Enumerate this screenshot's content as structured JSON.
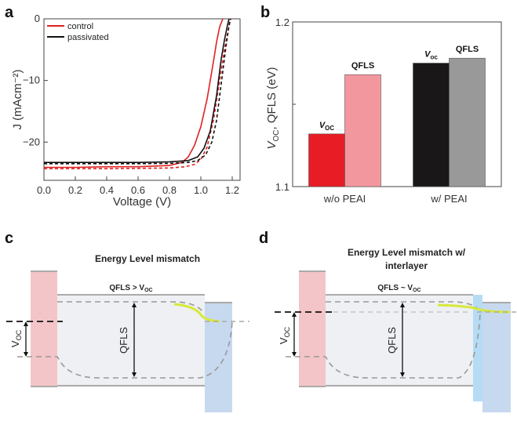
{
  "panels": {
    "a": "a",
    "b": "b",
    "c": "c",
    "d": "d"
  },
  "chart_data": [
    {
      "panel": "a",
      "type": "line",
      "xlabel": "Voltage (V)",
      "ylabel": "J (mAcm⁻²)",
      "xlim": [
        0,
        1.25
      ],
      "ylim": [
        -26.2,
        0
      ],
      "xticks": [
        "0.0",
        "0.2",
        "0.4",
        "0.6",
        "0.8",
        "1.0",
        "1.2"
      ],
      "yticks": [
        "-20",
        "-10",
        "0"
      ],
      "legend": {
        "position": "top-right",
        "entries": [
          "control",
          "passivated"
        ]
      },
      "series": [
        {
          "name": "control",
          "color": "#e02020",
          "dash": "solid",
          "x": [
            0,
            0.2,
            0.4,
            0.6,
            0.8,
            0.88,
            0.92,
            0.96,
            1.0,
            1.04,
            1.08,
            1.1,
            1.12,
            1.14
          ],
          "y": [
            -24.1,
            -24.1,
            -24.0,
            -24.0,
            -23.8,
            -23.3,
            -22.4,
            -20.5,
            -17.5,
            -13.0,
            -7.0,
            -3.8,
            -1.3,
            0
          ]
        },
        {
          "name": "control (reverse)",
          "color": "#e02020",
          "dash": "dashed",
          "x": [
            0,
            0.2,
            0.4,
            0.6,
            0.8,
            0.9,
            0.96,
            1.0,
            1.04,
            1.08,
            1.12,
            1.15,
            1.18,
            1.19
          ],
          "y": [
            -24.3,
            -24.3,
            -24.3,
            -24.25,
            -24.2,
            -24.0,
            -23.6,
            -22.8,
            -20.8,
            -16.5,
            -10.0,
            -5.0,
            -1.2,
            0
          ]
        },
        {
          "name": "passivated",
          "color": "#111111",
          "dash": "solid",
          "x": [
            0,
            0.2,
            0.4,
            0.6,
            0.8,
            0.92,
            0.98,
            1.02,
            1.06,
            1.1,
            1.13,
            1.15,
            1.17,
            1.18
          ],
          "y": [
            -23.3,
            -23.3,
            -23.3,
            -23.3,
            -23.2,
            -23.0,
            -22.4,
            -21.0,
            -18.2,
            -12.5,
            -6.5,
            -3.5,
            -1.0,
            0
          ]
        },
        {
          "name": "passivated (reverse)",
          "color": "#111111",
          "dash": "dashed",
          "x": [
            0,
            0.2,
            0.4,
            0.6,
            0.8,
            0.92,
            0.98,
            1.03,
            1.07,
            1.1,
            1.13,
            1.16,
            1.18,
            1.19
          ],
          "y": [
            -23.5,
            -23.5,
            -23.5,
            -23.5,
            -23.45,
            -23.3,
            -23.0,
            -22.1,
            -20.0,
            -16.5,
            -10.5,
            -4.5,
            -1.0,
            0
          ]
        }
      ]
    },
    {
      "panel": "b",
      "type": "bar",
      "ylabel": "V_OC, QFLS (eV)",
      "ylim": [
        1.1,
        1.2
      ],
      "yticks": [
        "1.1",
        "1.2"
      ],
      "categories": [
        "w/o PEAI",
        "w/ PEAI"
      ],
      "series": [
        {
          "name": "V_OC",
          "values": [
            1.132,
            1.175
          ],
          "colors": [
            "#e81c24",
            "#1a1718"
          ]
        },
        {
          "name": "QFLS",
          "values": [
            1.168,
            1.178
          ],
          "colors": [
            "#f3979e",
            "#999999"
          ]
        }
      ],
      "bar_labels": [
        {
          "main": "V",
          "sub": "OC"
        },
        {
          "main": "QFLS",
          "sub": ""
        },
        {
          "main": "V",
          "sub": "oc"
        },
        {
          "main": "QFLS",
          "sub": ""
        }
      ]
    }
  ],
  "diagram_c": {
    "title": "Energy Level mismatch",
    "sublabel_main": "QFLS > V",
    "sublabel_sub": "OC",
    "voc_main": "V",
    "voc_sub": "OC",
    "qfls": "QFLS",
    "colors": {
      "htl": "#f3c5c8",
      "absorber": "#eef0f3",
      "etl": "#c7d9ef",
      "fermi": "#d6e93a"
    }
  },
  "diagram_d": {
    "title_line1": "Energy Level mismatch w/",
    "title_line2": "interlayer",
    "sublabel_main": "QFLS ~ V",
    "sublabel_sub": "OC",
    "voc_main": "V",
    "voc_sub": "OC",
    "qfls": "QFLS",
    "colors": {
      "htl": "#f3c5c8",
      "absorber": "#eef0f3",
      "etl": "#c7d9ef",
      "interlayer": "#b6dcf5",
      "fermi": "#d6e93a"
    }
  }
}
